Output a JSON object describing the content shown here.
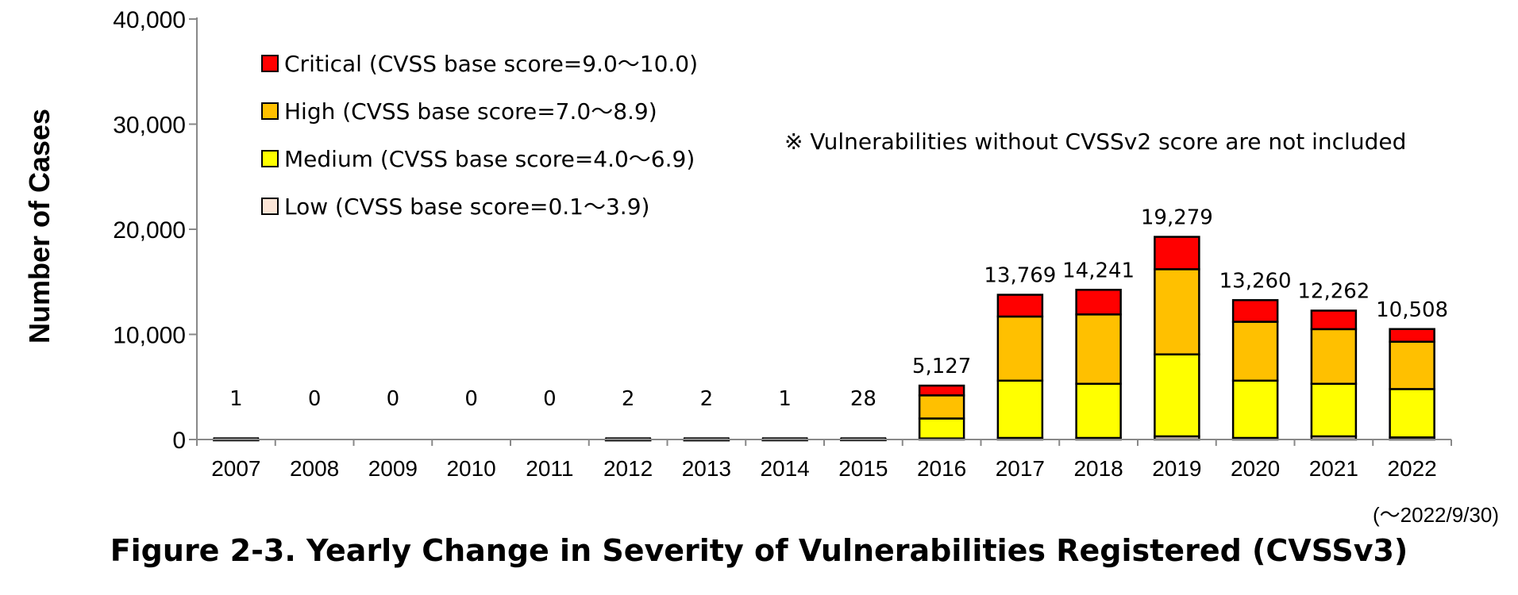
{
  "chart_data": {
    "type": "bar",
    "stacked": true,
    "categories": [
      "2007",
      "2008",
      "2009",
      "2010",
      "2011",
      "2012",
      "2013",
      "2014",
      "2015",
      "2016",
      "2017",
      "2018",
      "2019",
      "2020",
      "2021",
      "2022"
    ],
    "series": [
      {
        "name": "Low (CVSS base score=0.1～3.9)",
        "color": "#FBE5D6",
        "values": [
          0,
          0,
          0,
          0,
          0,
          0,
          0,
          0,
          0,
          100,
          150,
          150,
          300,
          150,
          300,
          200
        ]
      },
      {
        "name": "Medium (CVSS base score=4.0～6.9)",
        "color": "#FFFF00",
        "values": [
          0,
          0,
          0,
          0,
          0,
          1,
          1,
          0,
          10,
          1900,
          5450,
          5150,
          7800,
          5450,
          5000,
          4600
        ]
      },
      {
        "name": "High (CVSS base score=7.0～8.9)",
        "color": "#FFC000",
        "values": [
          1,
          0,
          0,
          0,
          0,
          1,
          1,
          1,
          13,
          2200,
          6100,
          6600,
          8100,
          5600,
          5200,
          4500
        ]
      },
      {
        "name": "Critical (CVSS base score=9.0～10.0)",
        "color": "#FF0000",
        "values": [
          0,
          0,
          0,
          0,
          0,
          0,
          0,
          0,
          5,
          927,
          2069,
          2341,
          3079,
          2060,
          1762,
          1208
        ]
      }
    ],
    "totals": [
      "1",
      "0",
      "0",
      "0",
      "0",
      "2",
      "2",
      "1",
      "28",
      "5,127",
      "13,769",
      "14,241",
      "19,279",
      "13,260",
      "12,262",
      "10,508"
    ],
    "ylabel": "Number of Cases",
    "ylim": [
      0,
      40000
    ],
    "yticks": [
      0,
      10000,
      20000,
      30000,
      40000
    ],
    "ytick_labels": [
      "0",
      "10,000",
      "20,000",
      "30,000",
      "40,000"
    ],
    "x_note": "(～2022/9/30)",
    "annotation": "※ Vulnerabilities without CVSSv2 score are not included",
    "legend_order": [
      3,
      2,
      1,
      0
    ],
    "legend_placement": "top-left",
    "grid": false
  },
  "caption": "Figure 2-3. Yearly Change in Severity of Vulnerabilities Registered (CVSSv3)"
}
